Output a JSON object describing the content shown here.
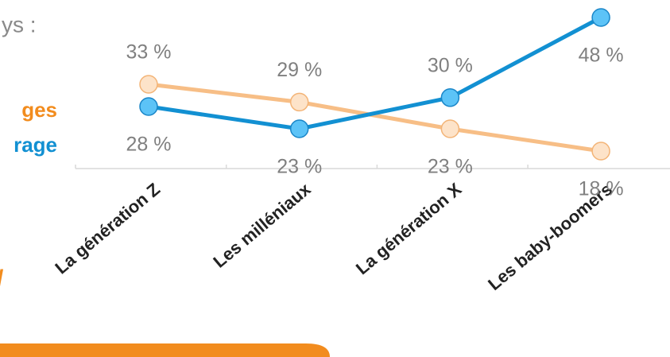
{
  "chart_data": {
    "type": "line",
    "subtitle": "ys :",
    "annotation": "/",
    "categories": [
      "La génération Z",
      "Les milléniaux",
      "La génération X",
      "Les baby-boomers"
    ],
    "series": [
      {
        "name": "ges",
        "color": "#f7be86",
        "values": [
          33,
          29,
          23,
          18
        ],
        "value_labels": [
          "33 %",
          "29 %",
          "23 %",
          "18 %"
        ]
      },
      {
        "name": "rage",
        "color": "#1290d2",
        "values": [
          28,
          23,
          30,
          48
        ],
        "value_labels": [
          "28 %",
          "23 %",
          "30 %",
          "48 %"
        ]
      }
    ]
  }
}
